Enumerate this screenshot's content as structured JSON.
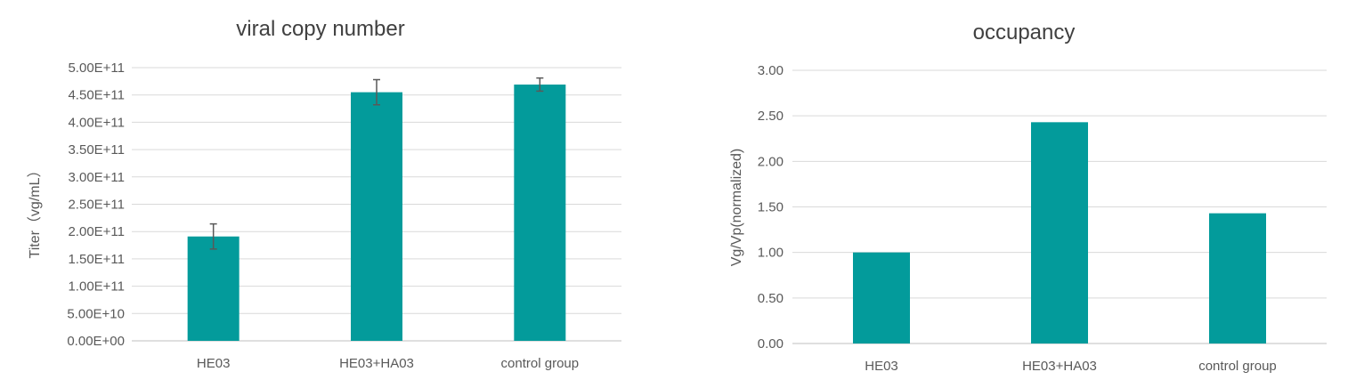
{
  "chart_data": [
    {
      "type": "bar",
      "title": "viral copy number",
      "xlabel": "",
      "ylabel": "Titer（vg/mL）",
      "categories": [
        "HE03",
        "HE03+HA03",
        "control group"
      ],
      "values": [
        191000000000.0,
        455000000000.0,
        469000000000.0
      ],
      "errors": [
        23000000000.0,
        23000000000.0,
        12000000000.0
      ],
      "ylim": [
        0,
        500000000000.0
      ],
      "yticks": [
        0,
        50000000000.0,
        100000000000.0,
        150000000000.0,
        200000000000.0,
        250000000000.0,
        300000000000.0,
        350000000000.0,
        400000000000.0,
        450000000000.0,
        500000000000.0
      ],
      "ytick_labels": [
        "0.00E+00",
        "5.00E+10",
        "1.00E+11",
        "1.50E+11",
        "2.00E+11",
        "2.50E+11",
        "3.00E+11",
        "3.50E+11",
        "4.00E+11",
        "4.50E+11",
        "5.00E+11"
      ],
      "grid": true,
      "color": "#039b9b"
    },
    {
      "type": "bar",
      "title": "occupancy",
      "xlabel": "",
      "ylabel": "Vg/Vp(normalized)",
      "categories": [
        "HE03",
        "HE03+HA03",
        "control group"
      ],
      "values": [
        1.0,
        2.43,
        1.43
      ],
      "ylim": [
        0,
        3.0
      ],
      "yticks": [
        0,
        0.5,
        1.0,
        1.5,
        2.0,
        2.5,
        3.0
      ],
      "ytick_labels": [
        "0.00",
        "0.50",
        "1.00",
        "1.50",
        "2.00",
        "2.50",
        "3.00"
      ],
      "grid": true,
      "color": "#039b9b"
    }
  ]
}
